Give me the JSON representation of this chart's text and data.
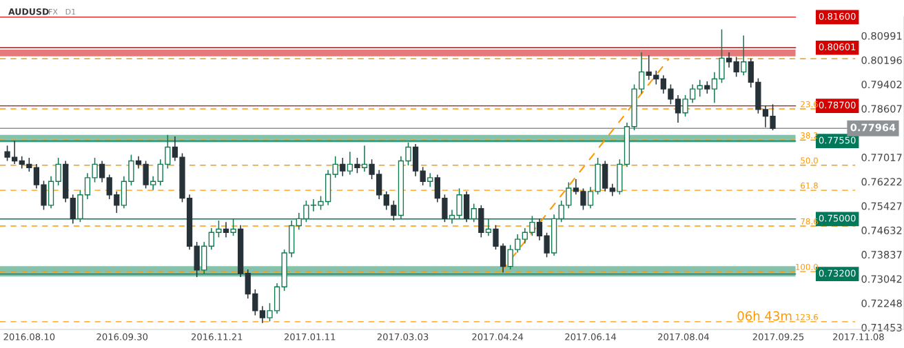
{
  "chart_data": {
    "type": "candlestick",
    "title": "AUDUSD",
    "subtitle": "FX   D1",
    "x": [
      "2016-07-29",
      "2016-08-02",
      "2016-08-06",
      "2016-08-10",
      "2016-08-14",
      "2016-08-18",
      "2016-08-22",
      "2016-08-26",
      "2016-08-30",
      "2016-09-03",
      "2016-09-07",
      "2016-09-11",
      "2016-09-15",
      "2016-09-19",
      "2016-09-23",
      "2016-09-27",
      "2016-10-01",
      "2016-10-05",
      "2016-10-09",
      "2016-10-13",
      "2016-10-17",
      "2016-10-21",
      "2016-10-25",
      "2016-10-29",
      "2016-11-02",
      "2016-11-06",
      "2016-11-10",
      "2016-11-14",
      "2016-11-18",
      "2016-11-22",
      "2016-11-26",
      "2016-11-30",
      "2016-12-04",
      "2016-12-08",
      "2016-12-12",
      "2016-12-16",
      "2016-12-20",
      "2016-12-24",
      "2016-12-28",
      "2017-01-01",
      "2017-01-05",
      "2017-01-09",
      "2017-01-13",
      "2017-01-17",
      "2017-01-21",
      "2017-01-25",
      "2017-01-29",
      "2017-02-02",
      "2017-02-06",
      "2017-02-10",
      "2017-02-14",
      "2017-02-18",
      "2017-02-22",
      "2017-02-26",
      "2017-03-02",
      "2017-03-06",
      "2017-03-10",
      "2017-03-14",
      "2017-03-18",
      "2017-03-22",
      "2017-03-26",
      "2017-03-30",
      "2017-04-03",
      "2017-04-07",
      "2017-04-11",
      "2017-04-15",
      "2017-04-19",
      "2017-04-23",
      "2017-04-27",
      "2017-05-01",
      "2017-05-05",
      "2017-05-09",
      "2017-05-13",
      "2017-05-17",
      "2017-05-21",
      "2017-05-25",
      "2017-05-29",
      "2017-06-02",
      "2017-06-06",
      "2017-06-10",
      "2017-06-14",
      "2017-06-18",
      "2017-06-22",
      "2017-06-26",
      "2017-06-30",
      "2017-07-04",
      "2017-07-08",
      "2017-07-12",
      "2017-07-16",
      "2017-07-20",
      "2017-07-24",
      "2017-07-28",
      "2017-08-01",
      "2017-08-05",
      "2017-08-09",
      "2017-08-13",
      "2017-08-17",
      "2017-08-21",
      "2017-08-25",
      "2017-08-29",
      "2017-09-02",
      "2017-09-06",
      "2017-09-10",
      "2017-09-14",
      "2017-09-18",
      "2017-09-22"
    ],
    "ohlc": [
      [
        0.772,
        0.774,
        0.769,
        0.7702
      ],
      [
        0.7702,
        0.7755,
        0.768,
        0.769
      ],
      [
        0.769,
        0.7705,
        0.7665,
        0.7679
      ],
      [
        0.7679,
        0.77,
        0.7655,
        0.7668
      ],
      [
        0.7668,
        0.768,
        0.76,
        0.7612
      ],
      [
        0.7612,
        0.7625,
        0.753,
        0.7545
      ],
      [
        0.7545,
        0.764,
        0.7535,
        0.7623
      ],
      [
        0.7623,
        0.77,
        0.761,
        0.7679
      ],
      [
        0.7679,
        0.769,
        0.7555,
        0.7568
      ],
      [
        0.7568,
        0.758,
        0.7485,
        0.7501
      ],
      [
        0.7501,
        0.7595,
        0.749,
        0.7579
      ],
      [
        0.7579,
        0.765,
        0.7565,
        0.7635
      ],
      [
        0.7635,
        0.77,
        0.762,
        0.7679
      ],
      [
        0.7679,
        0.769,
        0.762,
        0.7635
      ],
      [
        0.7635,
        0.7645,
        0.7565,
        0.7579
      ],
      [
        0.7579,
        0.759,
        0.752,
        0.7545
      ],
      [
        0.7545,
        0.764,
        0.7535,
        0.7623
      ],
      [
        0.7623,
        0.771,
        0.761,
        0.769
      ],
      [
        0.769,
        0.7705,
        0.7665,
        0.7679
      ],
      [
        0.7679,
        0.769,
        0.76,
        0.7612
      ],
      [
        0.7612,
        0.764,
        0.7595,
        0.7623
      ],
      [
        0.7623,
        0.7695,
        0.761,
        0.7679
      ],
      [
        0.7679,
        0.7775,
        0.7665,
        0.7735
      ],
      [
        0.7735,
        0.777,
        0.769,
        0.7702
      ],
      [
        0.7702,
        0.7715,
        0.7555,
        0.7568
      ],
      [
        0.7568,
        0.758,
        0.74,
        0.7411
      ],
      [
        0.7411,
        0.7425,
        0.731,
        0.7333
      ],
      [
        0.7333,
        0.7425,
        0.732,
        0.7411
      ],
      [
        0.7411,
        0.747,
        0.74,
        0.7456
      ],
      [
        0.7456,
        0.7495,
        0.744,
        0.7467
      ],
      [
        0.7467,
        0.749,
        0.744,
        0.7456
      ],
      [
        0.7456,
        0.75,
        0.7445,
        0.7467
      ],
      [
        0.7467,
        0.748,
        0.731,
        0.7322
      ],
      [
        0.7322,
        0.7335,
        0.724,
        0.7255
      ],
      [
        0.7255,
        0.727,
        0.7185,
        0.72
      ],
      [
        0.72,
        0.7215,
        0.716,
        0.7177
      ],
      [
        0.7177,
        0.7225,
        0.7165,
        0.72
      ],
      [
        0.72,
        0.729,
        0.719,
        0.7278
      ],
      [
        0.7278,
        0.74,
        0.7265,
        0.7389
      ],
      [
        0.7389,
        0.7495,
        0.7375,
        0.7478
      ],
      [
        0.7478,
        0.752,
        0.7465,
        0.7501
      ],
      [
        0.7501,
        0.756,
        0.749,
        0.7545
      ],
      [
        0.7545,
        0.7565,
        0.7525,
        0.7545
      ],
      [
        0.7545,
        0.7575,
        0.753,
        0.7557
      ],
      [
        0.7557,
        0.766,
        0.7545,
        0.7646
      ],
      [
        0.7646,
        0.7705,
        0.7635,
        0.7679
      ],
      [
        0.7679,
        0.77,
        0.764,
        0.7657
      ],
      [
        0.7657,
        0.772,
        0.7645,
        0.7679
      ],
      [
        0.7679,
        0.77,
        0.765,
        0.7668
      ],
      [
        0.7668,
        0.774,
        0.7655,
        0.7679
      ],
      [
        0.7679,
        0.7695,
        0.763,
        0.7646
      ],
      [
        0.7646,
        0.766,
        0.7565,
        0.7579
      ],
      [
        0.7579,
        0.759,
        0.753,
        0.7545
      ],
      [
        0.7545,
        0.756,
        0.7495,
        0.7512
      ],
      [
        0.7512,
        0.7705,
        0.75,
        0.769
      ],
      [
        0.769,
        0.775,
        0.7675,
        0.7735
      ],
      [
        0.7735,
        0.7745,
        0.764,
        0.7657
      ],
      [
        0.7657,
        0.767,
        0.761,
        0.7623
      ],
      [
        0.7623,
        0.765,
        0.7605,
        0.7635
      ],
      [
        0.7635,
        0.7645,
        0.7555,
        0.7568
      ],
      [
        0.7568,
        0.758,
        0.749,
        0.7501
      ],
      [
        0.7501,
        0.753,
        0.7485,
        0.7512
      ],
      [
        0.7512,
        0.76,
        0.75,
        0.7579
      ],
      [
        0.7579,
        0.759,
        0.749,
        0.7501
      ],
      [
        0.7501,
        0.755,
        0.749,
        0.7534
      ],
      [
        0.7534,
        0.7545,
        0.744,
        0.7456
      ],
      [
        0.7456,
        0.75,
        0.7445,
        0.7467
      ],
      [
        0.7467,
        0.748,
        0.74,
        0.7411
      ],
      [
        0.7411,
        0.742,
        0.7325,
        0.7345
      ],
      [
        0.7345,
        0.7415,
        0.7335,
        0.74
      ],
      [
        0.74,
        0.745,
        0.739,
        0.7434
      ],
      [
        0.7434,
        0.747,
        0.742,
        0.7456
      ],
      [
        0.7456,
        0.751,
        0.7445,
        0.7489
      ],
      [
        0.7489,
        0.75,
        0.743,
        0.7445
      ],
      [
        0.7445,
        0.7455,
        0.7375,
        0.7389
      ],
      [
        0.7389,
        0.7515,
        0.738,
        0.7501
      ],
      [
        0.7501,
        0.756,
        0.749,
        0.7545
      ],
      [
        0.7545,
        0.762,
        0.7535,
        0.7601
      ],
      [
        0.7601,
        0.763,
        0.758,
        0.759
      ],
      [
        0.759,
        0.76,
        0.753,
        0.7545
      ],
      [
        0.7545,
        0.7605,
        0.7535,
        0.759
      ],
      [
        0.759,
        0.77,
        0.758,
        0.7679
      ],
      [
        0.7679,
        0.769,
        0.759,
        0.7601
      ],
      [
        0.7601,
        0.7615,
        0.7575,
        0.759
      ],
      [
        0.759,
        0.7695,
        0.758,
        0.7679
      ],
      [
        0.7679,
        0.7815,
        0.767,
        0.7802
      ],
      [
        0.7802,
        0.794,
        0.779,
        0.7925
      ],
      [
        0.7925,
        0.8045,
        0.791,
        0.7981
      ],
      [
        0.7981,
        0.8035,
        0.7955,
        0.797
      ],
      [
        0.797,
        0.7985,
        0.794,
        0.7958
      ],
      [
        0.7958,
        0.797,
        0.791,
        0.7925
      ],
      [
        0.7925,
        0.794,
        0.7875,
        0.7892
      ],
      [
        0.7892,
        0.7905,
        0.7815,
        0.7847
      ],
      [
        0.7847,
        0.7905,
        0.7835,
        0.7892
      ],
      [
        0.7892,
        0.794,
        0.788,
        0.7925
      ],
      [
        0.7925,
        0.7955,
        0.79,
        0.7936
      ],
      [
        0.7936,
        0.795,
        0.791,
        0.7925
      ],
      [
        0.7925,
        0.798,
        0.788,
        0.7958
      ],
      [
        0.7958,
        0.812,
        0.7945,
        0.8026
      ],
      [
        0.8026,
        0.8045,
        0.7995,
        0.8014
      ],
      [
        0.8014,
        0.803,
        0.7965,
        0.7981
      ],
      [
        0.7981,
        0.81,
        0.797,
        0.8014
      ],
      [
        0.8014,
        0.8025,
        0.793,
        0.7947
      ],
      [
        0.7947,
        0.796,
        0.7845,
        0.7858
      ],
      [
        0.7858,
        0.787,
        0.78,
        0.7836
      ],
      [
        0.7836,
        0.7875,
        0.779,
        0.7796
      ]
    ],
    "series": [
      {
        "type": "line",
        "x": [
          "2017-04-26",
          "2017-07-27"
        ],
        "values": [
          0.7328,
          0.8024
        ],
        "color": "#ff9800",
        "line_style": "dashed"
      }
    ],
    "xlim": [
      "2016-07-25",
      "2017-12-03"
    ],
    "xticks": [
      {
        "value": "2016-08-10",
        "label": "2016.08.10"
      },
      {
        "value": "2016-09-30",
        "label": "2016.09.30"
      },
      {
        "value": "2016-11-21",
        "label": "2016.11.21"
      },
      {
        "value": "2017-01-11",
        "label": "2017.01.11"
      },
      {
        "value": "2017-03-03",
        "label": "2017.03.03"
      },
      {
        "value": "2017-04-24",
        "label": "2017.04.24"
      },
      {
        "value": "2017-06-14",
        "label": "2017.06.14"
      },
      {
        "value": "2017-08-04",
        "label": "2017.08.04"
      },
      {
        "value": "2017-09-25",
        "label": "2017.09.25"
      },
      {
        "value": "2017-11-08",
        "label": "2017.11.08"
      }
    ],
    "ylim": [
      0.7139,
      0.8162
    ],
    "yticks": [
      0.80991,
      0.80196,
      0.79402,
      0.78607,
      0.77017,
      0.76222,
      0.75427,
      0.74632,
      0.73837,
      0.73042,
      0.72248,
      0.71453
    ],
    "bands": [
      {
        "axis": "y",
        "from": 0.7751,
        "to": 0.7775,
        "color": "#80bfa6"
      },
      {
        "axis": "y",
        "from": 0.7312,
        "to": 0.7346,
        "color": "#80bfa6"
      },
      {
        "axis": "y",
        "from": 0.8032,
        "to": 0.8054,
        "color": "#e57373"
      }
    ],
    "ref_lines": [
      {
        "axis": "y",
        "value": 0.816,
        "label": "0.81600",
        "color": "#d50000",
        "line_style": "solid"
      },
      {
        "axis": "y",
        "value": 0.80601,
        "label": "0.80601",
        "color": "#d50000",
        "line_style": "solid"
      },
      {
        "axis": "y",
        "value": 0.787,
        "label": "0.78700",
        "color": "#d50000",
        "line_style": "solid"
      },
      {
        "axis": "y",
        "value": 0.7755,
        "label": "0.77550",
        "color": "#00795a",
        "line_style": "solid"
      },
      {
        "axis": "y",
        "value": 0.75,
        "label": "0.75000",
        "color": "#00795a",
        "line_style": "solid"
      },
      {
        "axis": "y",
        "value": 0.732,
        "label": "0.73200",
        "color": "#00795a",
        "line_style": "solid"
      },
      {
        "axis": "y",
        "value": 0.77964,
        "label": "0.77964",
        "color": "#8c9296",
        "line_style": "solid"
      },
      {
        "axis": "y",
        "value": 0.8024,
        "color": "#ff9800",
        "line_style": "dashed"
      },
      {
        "axis": "y",
        "value": 0.786,
        "color": "#ff9800",
        "line_style": "dashed"
      },
      {
        "axis": "y",
        "value": 0.7758,
        "color": "#ff9800",
        "line_style": "dashed"
      },
      {
        "axis": "y",
        "value": 0.7676,
        "color": "#ff9800",
        "line_style": "dashed"
      },
      {
        "axis": "y",
        "value": 0.7594,
        "color": "#ff9800",
        "line_style": "dashed"
      },
      {
        "axis": "y",
        "value": 0.7477,
        "color": "#ff9800",
        "line_style": "dashed"
      },
      {
        "axis": "y",
        "value": 0.7328,
        "color": "#ff9800",
        "line_style": "dashed"
      },
      {
        "axis": "y",
        "value": 0.7164,
        "color": "#ff9800",
        "line_style": "dashed"
      }
    ],
    "annotations": [
      "06h 43m",
      {
        "text": "23.6",
        "x": "2017-10-17",
        "y": 0.786
      },
      {
        "text": "38.2",
        "x": "2017-10-17",
        "y": 0.7758
      },
      {
        "text": "50.0",
        "x": "2017-10-17",
        "y": 0.7676
      },
      {
        "text": "61.8",
        "x": "2017-10-17",
        "y": 0.7594
      },
      {
        "text": "78.6",
        "x": "2017-10-17",
        "y": 0.7477
      },
      {
        "text": "100.0",
        "x": "2017-10-17",
        "y": 0.7328
      },
      {
        "text": "123.6",
        "x": "2017-10-17",
        "y": 0.7164
      }
    ],
    "grid": false,
    "legend": false
  }
}
